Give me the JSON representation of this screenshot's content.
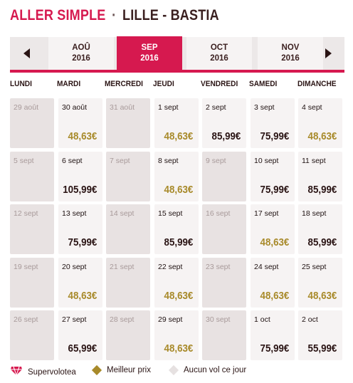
{
  "header": {
    "trip_type": "ALLER SIMPLE",
    "separator": "·",
    "route": "LILLE - BASTIA"
  },
  "month_nav": {
    "prev_icon": "chevron-left-icon",
    "next_icon": "chevron-right-icon",
    "months": [
      {
        "month": "AOÛ",
        "year": "2016",
        "active": false
      },
      {
        "month": "SEP",
        "year": "2016",
        "active": true
      },
      {
        "month": "OCT",
        "year": "2016",
        "active": false
      },
      {
        "month": "NOV",
        "year": "2016",
        "active": false
      }
    ]
  },
  "weekdays": [
    "LUNDI",
    "MARDI",
    "MERCREDI",
    "JEUDI",
    "VENDREDI",
    "SAMEDI",
    "DIMANCHE"
  ],
  "weeks": [
    [
      {
        "date": "29 août",
        "price": "",
        "type": "empty"
      },
      {
        "date": "30 août",
        "price": "48,63€",
        "type": "best"
      },
      {
        "date": "31 août",
        "price": "",
        "type": "empty"
      },
      {
        "date": "1 sept",
        "price": "48,63€",
        "type": "best"
      },
      {
        "date": "2 sept",
        "price": "85,99€",
        "type": "normal"
      },
      {
        "date": "3 sept",
        "price": "75,99€",
        "type": "normal"
      },
      {
        "date": "4 sept",
        "price": "48,63€",
        "type": "best"
      }
    ],
    [
      {
        "date": "5 sept",
        "price": "",
        "type": "empty"
      },
      {
        "date": "6 sept",
        "price": "105,99€",
        "type": "normal"
      },
      {
        "date": "7 sept",
        "price": "",
        "type": "empty"
      },
      {
        "date": "8 sept",
        "price": "48,63€",
        "type": "best"
      },
      {
        "date": "9 sept",
        "price": "",
        "type": "empty"
      },
      {
        "date": "10 sept",
        "price": "75,99€",
        "type": "normal"
      },
      {
        "date": "11 sept",
        "price": "85,99€",
        "type": "normal"
      }
    ],
    [
      {
        "date": "12 sept",
        "price": "",
        "type": "empty"
      },
      {
        "date": "13 sept",
        "price": "75,99€",
        "type": "normal"
      },
      {
        "date": "14 sept",
        "price": "",
        "type": "empty"
      },
      {
        "date": "15 sept",
        "price": "85,99€",
        "type": "normal"
      },
      {
        "date": "16 sept",
        "price": "",
        "type": "empty"
      },
      {
        "date": "17 sept",
        "price": "48,63€",
        "type": "best"
      },
      {
        "date": "18 sept",
        "price": "85,99€",
        "type": "normal"
      }
    ],
    [
      {
        "date": "19 sept",
        "price": "",
        "type": "empty"
      },
      {
        "date": "20 sept",
        "price": "48,63€",
        "type": "best"
      },
      {
        "date": "21 sept",
        "price": "",
        "type": "empty"
      },
      {
        "date": "22 sept",
        "price": "48,63€",
        "type": "best"
      },
      {
        "date": "23 sept",
        "price": "",
        "type": "empty"
      },
      {
        "date": "24 sept",
        "price": "48,63€",
        "type": "best"
      },
      {
        "date": "25 sept",
        "price": "48,63€",
        "type": "best"
      }
    ],
    [
      {
        "date": "26 sept",
        "price": "",
        "type": "empty"
      },
      {
        "date": "27 sept",
        "price": "65,99€",
        "type": "normal"
      },
      {
        "date": "28 sept",
        "price": "",
        "type": "empty"
      },
      {
        "date": "29 sept",
        "price": "48,63€",
        "type": "best"
      },
      {
        "date": "30 sept",
        "price": "",
        "type": "empty"
      },
      {
        "date": "1 oct",
        "price": "75,99€",
        "type": "normal"
      },
      {
        "date": "2 oct",
        "price": "55,99€",
        "type": "normal"
      }
    ]
  ],
  "legend": [
    {
      "label": "Supervolotea",
      "icon": "gem-icon",
      "color": "#d6194f"
    },
    {
      "label": "Meilleur prix",
      "icon": "diamond-icon",
      "color": "#a88a2a"
    },
    {
      "label": "Aucun vol ce jour",
      "icon": "diamond-icon",
      "color": "#e6e1e1"
    }
  ],
  "colors": {
    "accent": "#d6194f",
    "best_price": "#a88a2a",
    "empty_cell": "#e8e2e2",
    "flight_cell": "#f6f3f3"
  }
}
